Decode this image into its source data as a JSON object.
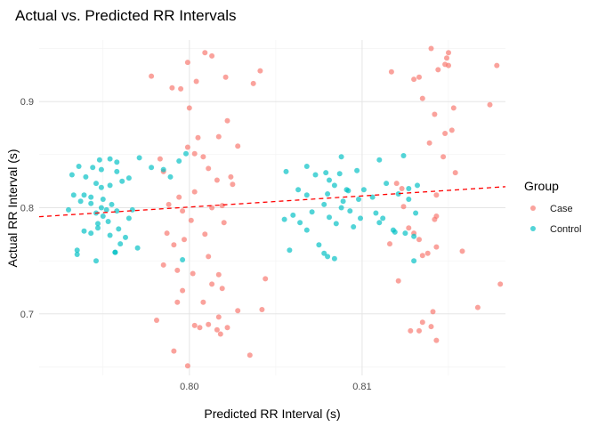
{
  "chart_data": {
    "type": "scatter",
    "title": "Actual vs. Predicted RR Intervals",
    "xlabel": "Predicted RR Interval (s)",
    "ylabel": "Actual RR Interval (s)",
    "xlim": [
      0.7913,
      0.8183
    ],
    "ylim": [
      0.642,
      0.958
    ],
    "xticks": [
      {
        "value": 0.8,
        "label": "0.80"
      },
      {
        "value": 0.81,
        "label": "0.81"
      }
    ],
    "yticks": [
      {
        "value": 0.7,
        "label": "0.7"
      },
      {
        "value": 0.8,
        "label": "0.8"
      },
      {
        "value": 0.9,
        "label": "0.9"
      }
    ],
    "grid": true,
    "legend": {
      "title": "Group",
      "position": "right"
    },
    "colors": {
      "Case": "#F8766D",
      "Control": "#00BFC4",
      "regression": "#FF0000"
    },
    "regression_line": {
      "style": "dashed",
      "x": [
        0.7913,
        0.8183
      ],
      "y": [
        0.7915,
        0.8198
      ]
    },
    "series": [
      {
        "name": "Case",
        "points": [
          [
            0.8009,
            0.946
          ],
          [
            0.8013,
            0.943
          ],
          [
            0.8041,
            0.929
          ],
          [
            0.7999,
            0.937
          ],
          [
            0.7978,
            0.924
          ],
          [
            0.8021,
            0.923
          ],
          [
            0.8004,
            0.919
          ],
          [
            0.799,
            0.913
          ],
          [
            0.8037,
            0.917
          ],
          [
            0.7995,
            0.912
          ],
          [
            0.8,
            0.894
          ],
          [
            0.8022,
            0.882
          ],
          [
            0.8017,
            0.867
          ],
          [
            0.8005,
            0.866
          ],
          [
            0.8028,
            0.858
          ],
          [
            0.7999,
            0.857
          ],
          [
            0.8003,
            0.851
          ],
          [
            0.8008,
            0.848
          ],
          [
            0.7983,
            0.846
          ],
          [
            0.7985,
            0.834
          ],
          [
            0.8011,
            0.837
          ],
          [
            0.8024,
            0.829
          ],
          [
            0.8016,
            0.826
          ],
          [
            0.8025,
            0.822
          ],
          [
            0.8003,
            0.815
          ],
          [
            0.7994,
            0.81
          ],
          [
            0.7988,
            0.803
          ],
          [
            0.8013,
            0.8
          ],
          [
            0.8019,
            0.802
          ],
          [
            0.7996,
            0.797
          ],
          [
            0.8001,
            0.788
          ],
          [
            0.802,
            0.786
          ],
          [
            0.7987,
            0.776
          ],
          [
            0.8009,
            0.775
          ],
          [
            0.7997,
            0.77
          ],
          [
            0.7991,
            0.765
          ],
          [
            0.8011,
            0.754
          ],
          [
            0.7985,
            0.746
          ],
          [
            0.7993,
            0.741
          ],
          [
            0.8002,
            0.738
          ],
          [
            0.8017,
            0.737
          ],
          [
            0.8044,
            0.733
          ],
          [
            0.8013,
            0.728
          ],
          [
            0.7996,
            0.722
          ],
          [
            0.8019,
            0.724
          ],
          [
            0.7993,
            0.711
          ],
          [
            0.8008,
            0.711
          ],
          [
            0.8028,
            0.703
          ],
          [
            0.8042,
            0.704
          ],
          [
            0.7981,
            0.694
          ],
          [
            0.8017,
            0.697
          ],
          [
            0.8003,
            0.689
          ],
          [
            0.8011,
            0.69
          ],
          [
            0.8006,
            0.687
          ],
          [
            0.8016,
            0.685
          ],
          [
            0.8022,
            0.687
          ],
          [
            0.8018,
            0.681
          ],
          [
            0.7991,
            0.665
          ],
          [
            0.8035,
            0.661
          ],
          [
            0.7999,
            0.651
          ],
          [
            0.814,
            0.95
          ],
          [
            0.815,
            0.946
          ],
          [
            0.8149,
            0.941
          ],
          [
            0.8148,
            0.935
          ],
          [
            0.815,
            0.934
          ],
          [
            0.8178,
            0.934
          ],
          [
            0.8144,
            0.93
          ],
          [
            0.8117,
            0.928
          ],
          [
            0.8133,
            0.923
          ],
          [
            0.813,
            0.921
          ],
          [
            0.8135,
            0.903
          ],
          [
            0.8174,
            0.897
          ],
          [
            0.8153,
            0.894
          ],
          [
            0.8142,
            0.888
          ],
          [
            0.8148,
            0.87
          ],
          [
            0.8152,
            0.873
          ],
          [
            0.8139,
            0.861
          ],
          [
            0.8154,
            0.833
          ],
          [
            0.8147,
            0.848
          ],
          [
            0.812,
            0.823
          ],
          [
            0.8123,
            0.818
          ],
          [
            0.8143,
            0.812
          ],
          [
            0.8124,
            0.801
          ],
          [
            0.8143,
            0.792
          ],
          [
            0.8142,
            0.789
          ],
          [
            0.8127,
            0.781
          ],
          [
            0.813,
            0.776
          ],
          [
            0.8133,
            0.77
          ],
          [
            0.8116,
            0.766
          ],
          [
            0.8143,
            0.763
          ],
          [
            0.8158,
            0.759
          ],
          [
            0.8135,
            0.755
          ],
          [
            0.8138,
            0.757
          ],
          [
            0.8121,
            0.731
          ],
          [
            0.818,
            0.728
          ],
          [
            0.8167,
            0.706
          ],
          [
            0.8141,
            0.702
          ],
          [
            0.8135,
            0.692
          ],
          [
            0.8128,
            0.684
          ],
          [
            0.8133,
            0.684
          ],
          [
            0.814,
            0.688
          ],
          [
            0.8143,
            0.675
          ]
        ]
      },
      {
        "name": "Control",
        "points": [
          [
            0.7954,
            0.846
          ],
          [
            0.7948,
            0.845
          ],
          [
            0.7971,
            0.847
          ],
          [
            0.7958,
            0.843
          ],
          [
            0.7936,
            0.839
          ],
          [
            0.7944,
            0.838
          ],
          [
            0.7949,
            0.836
          ],
          [
            0.7958,
            0.834
          ],
          [
            0.7932,
            0.831
          ],
          [
            0.794,
            0.829
          ],
          [
            0.7965,
            0.828
          ],
          [
            0.7961,
            0.825
          ],
          [
            0.7946,
            0.823
          ],
          [
            0.7954,
            0.821
          ],
          [
            0.7949,
            0.819
          ],
          [
            0.7933,
            0.812
          ],
          [
            0.7939,
            0.812
          ],
          [
            0.7943,
            0.81
          ],
          [
            0.795,
            0.808
          ],
          [
            0.7937,
            0.806
          ],
          [
            0.7943,
            0.804
          ],
          [
            0.7955,
            0.803
          ],
          [
            0.7949,
            0.8
          ],
          [
            0.7952,
            0.798
          ],
          [
            0.793,
            0.798
          ],
          [
            0.7958,
            0.797
          ],
          [
            0.7946,
            0.795
          ],
          [
            0.795,
            0.792
          ],
          [
            0.7965,
            0.79
          ],
          [
            0.7953,
            0.787
          ],
          [
            0.7947,
            0.785
          ],
          [
            0.7959,
            0.78
          ],
          [
            0.7939,
            0.778
          ],
          [
            0.7943,
            0.776
          ],
          [
            0.7954,
            0.774
          ],
          [
            0.7963,
            0.772
          ],
          [
            0.7935,
            0.76
          ],
          [
            0.7957,
            0.758
          ],
          [
            0.7935,
            0.756
          ],
          [
            0.7946,
            0.75
          ],
          [
            0.797,
            0.762
          ],
          [
            0.796,
            0.766
          ],
          [
            0.7947,
            0.781
          ],
          [
            0.7989,
            0.829
          ],
          [
            0.7985,
            0.836
          ],
          [
            0.7994,
            0.844
          ],
          [
            0.7998,
            0.851
          ],
          [
            0.7978,
            0.838
          ],
          [
            0.7967,
            0.798
          ],
          [
            0.7957,
            0.758
          ],
          [
            0.7996,
            0.751
          ],
          [
            0.8068,
            0.839
          ],
          [
            0.8079,
            0.833
          ],
          [
            0.8088,
            0.848
          ],
          [
            0.8087,
            0.832
          ],
          [
            0.8097,
            0.835
          ],
          [
            0.8101,
            0.817
          ],
          [
            0.811,
            0.845
          ],
          [
            0.8114,
            0.823
          ],
          [
            0.8056,
            0.834
          ],
          [
            0.8073,
            0.831
          ],
          [
            0.8084,
            0.821
          ],
          [
            0.8092,
            0.816
          ],
          [
            0.808,
            0.813
          ],
          [
            0.8068,
            0.812
          ],
          [
            0.8106,
            0.81
          ],
          [
            0.8098,
            0.808
          ],
          [
            0.8089,
            0.806
          ],
          [
            0.8078,
            0.803
          ],
          [
            0.8088,
            0.8
          ],
          [
            0.8093,
            0.797
          ],
          [
            0.8071,
            0.796
          ],
          [
            0.806,
            0.793
          ],
          [
            0.8081,
            0.791
          ],
          [
            0.8099,
            0.79
          ],
          [
            0.8055,
            0.789
          ],
          [
            0.8064,
            0.786
          ],
          [
            0.8085,
            0.785
          ],
          [
            0.8095,
            0.782
          ],
          [
            0.8068,
            0.779
          ],
          [
            0.811,
            0.786
          ],
          [
            0.8118,
            0.779
          ],
          [
            0.8125,
            0.776
          ],
          [
            0.813,
            0.773
          ],
          [
            0.8078,
            0.757
          ],
          [
            0.808,
            0.754
          ],
          [
            0.8084,
            0.752
          ],
          [
            0.8058,
            0.76
          ],
          [
            0.8075,
            0.765
          ],
          [
            0.8124,
            0.849
          ],
          [
            0.8132,
            0.821
          ],
          [
            0.8127,
            0.818
          ],
          [
            0.8121,
            0.813
          ],
          [
            0.8108,
            0.795
          ],
          [
            0.8112,
            0.79
          ],
          [
            0.813,
            0.75
          ],
          [
            0.8127,
            0.808
          ],
          [
            0.8131,
            0.795
          ],
          [
            0.8119,
            0.777
          ],
          [
            0.8091,
            0.817
          ],
          [
            0.8081,
            0.826
          ],
          [
            0.8063,
            0.817
          ]
        ]
      }
    ]
  }
}
